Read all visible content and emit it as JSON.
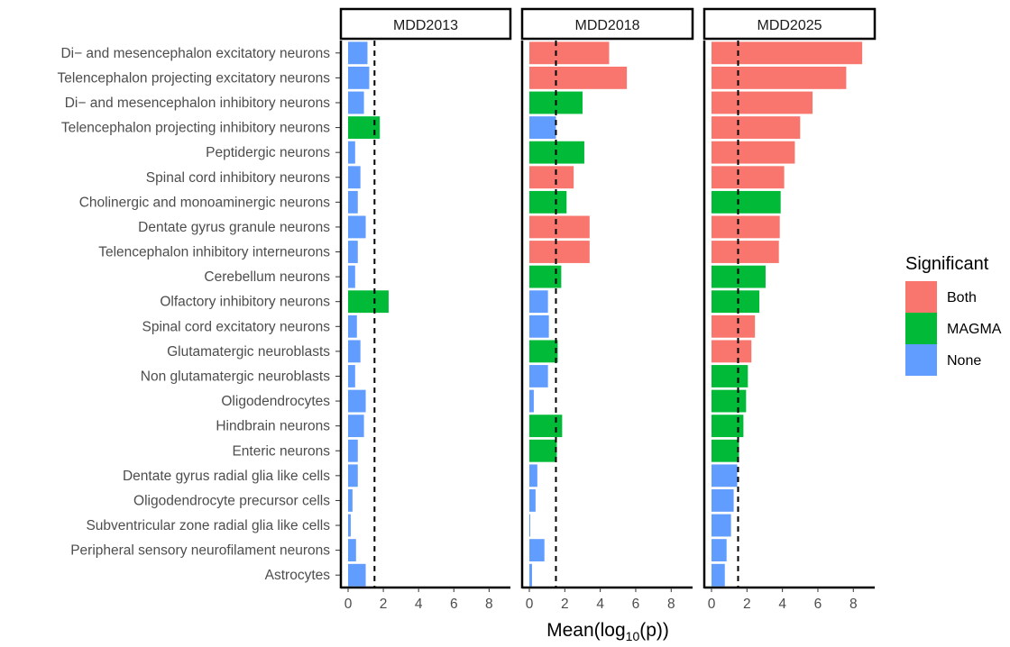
{
  "chart_data": {
    "type": "bar",
    "orientation": "horizontal",
    "xlabel_main": "Mean(log",
    "xlabel_sub": "10",
    "xlabel_tail": "(p))",
    "threshold": 1.5,
    "xlim": [
      0,
      8.8
    ],
    "x_ticks": [
      0,
      2,
      4,
      6,
      8
    ],
    "categories": [
      "Di− and mesencephalon excitatory neurons",
      "Telencephalon projecting excitatory neurons",
      "Di− and mesencephalon inhibitory neurons",
      "Telencephalon projecting inhibitory neurons",
      "Peptidergic neurons",
      "Spinal cord inhibitory neurons",
      "Cholinergic and monoaminergic neurons",
      "Dentate gyrus granule neurons",
      "Telencephalon inhibitory interneurons",
      "Cerebellum neurons",
      "Olfactory inhibitory neurons",
      "Spinal cord excitatory neurons",
      "Glutamatergic neuroblasts",
      "Non glutamatergic neuroblasts",
      "Oligodendrocytes",
      "Hindbrain neurons",
      "Enteric neurons",
      "Dentate gyrus radial glia like cells",
      "Oligodendrocyte precursor cells",
      "Subventricular zone radial glia like cells",
      "Peripheral sensory neurofilament neurons",
      "Astrocytes"
    ],
    "legend": {
      "title": "Significant",
      "position": "right",
      "items": [
        {
          "key": "Both",
          "label": "Both",
          "color": "#F8766D"
        },
        {
          "key": "MAGMA",
          "label": "MAGMA",
          "color": "#00BA38"
        },
        {
          "key": "None",
          "label": "None",
          "color": "#619CFF"
        }
      ]
    },
    "panels": [
      {
        "title": "MDD2013",
        "values": [
          1.1,
          1.2,
          0.9,
          1.8,
          0.4,
          0.7,
          0.55,
          1.0,
          0.55,
          0.4,
          2.3,
          0.5,
          0.7,
          0.4,
          1.0,
          0.9,
          0.55,
          0.55,
          0.25,
          0.15,
          0.45,
          1.0
        ],
        "groups": [
          "None",
          "None",
          "None",
          "MAGMA",
          "None",
          "None",
          "None",
          "None",
          "None",
          "None",
          "MAGMA",
          "None",
          "None",
          "None",
          "None",
          "None",
          "None",
          "None",
          "None",
          "None",
          "None",
          "None"
        ]
      },
      {
        "title": "MDD2018",
        "values": [
          4.5,
          5.5,
          3.0,
          1.5,
          3.1,
          2.5,
          2.1,
          3.4,
          3.4,
          1.8,
          1.05,
          1.1,
          1.6,
          1.05,
          0.25,
          1.85,
          1.55,
          0.45,
          0.35,
          0.05,
          0.85,
          0.15
        ],
        "groups": [
          "Both",
          "Both",
          "MAGMA",
          "None",
          "MAGMA",
          "Both",
          "MAGMA",
          "Both",
          "Both",
          "MAGMA",
          "None",
          "None",
          "MAGMA",
          "None",
          "None",
          "MAGMA",
          "MAGMA",
          "None",
          "None",
          "None",
          "None",
          "None"
        ]
      },
      {
        "title": "MDD2025",
        "values": [
          8.5,
          7.6,
          5.7,
          5.0,
          4.7,
          4.1,
          3.9,
          3.85,
          3.8,
          3.05,
          2.7,
          2.45,
          2.25,
          2.05,
          1.95,
          1.8,
          1.55,
          1.45,
          1.25,
          1.1,
          0.85,
          0.75
        ],
        "groups": [
          "Both",
          "Both",
          "Both",
          "Both",
          "Both",
          "Both",
          "MAGMA",
          "Both",
          "Both",
          "MAGMA",
          "MAGMA",
          "Both",
          "Both",
          "MAGMA",
          "MAGMA",
          "MAGMA",
          "MAGMA",
          "None",
          "None",
          "None",
          "None",
          "None"
        ]
      }
    ]
  }
}
